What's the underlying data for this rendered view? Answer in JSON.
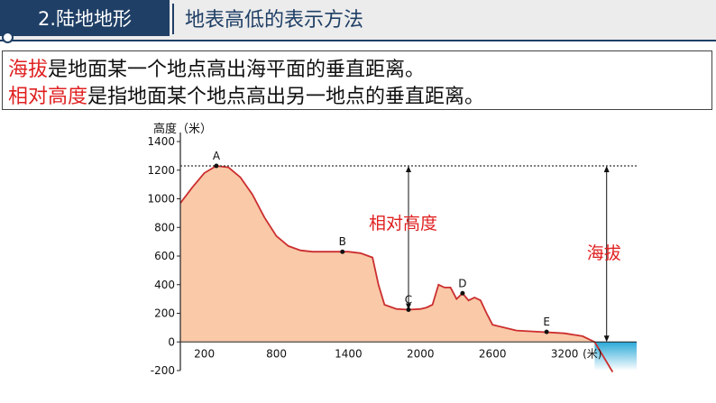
{
  "header": {
    "section_label": "2.陆地地形",
    "title": "地表高低的表示方法"
  },
  "definitions": [
    {
      "term": "海拔",
      "text": "是地面某一个地点高出海平面的垂直距离。"
    },
    {
      "term": "相对高度",
      "text": "是指地面某个地点高出另一地点的垂直距离。"
    }
  ],
  "colors": {
    "accent": "#1f3f66",
    "term_red": "#e02020",
    "land_fill": "#f9c9a8",
    "land_outline": "#cc2e2e",
    "sea": "#29a9d8"
  },
  "chart_data": {
    "type": "area",
    "ylabel": "高度（米）",
    "y_ticks": [
      1400,
      1200,
      1000,
      800,
      600,
      400,
      200,
      0,
      -200
    ],
    "x_ticks": [
      "200",
      "800",
      "1400",
      "2000",
      "2600",
      "3200"
    ],
    "x_unit": "(米)",
    "ylim": [
      -200,
      1400
    ],
    "xlim": [
      0,
      3800
    ],
    "profile": [
      [
        0,
        970
      ],
      [
        100,
        1080
      ],
      [
        200,
        1180
      ],
      [
        300,
        1230
      ],
      [
        400,
        1220
      ],
      [
        500,
        1150
      ],
      [
        600,
        1030
      ],
      [
        700,
        870
      ],
      [
        800,
        740
      ],
      [
        900,
        670
      ],
      [
        1000,
        640
      ],
      [
        1100,
        630
      ],
      [
        1200,
        630
      ],
      [
        1300,
        630
      ],
      [
        1400,
        630
      ],
      [
        1500,
        620
      ],
      [
        1600,
        590
      ],
      [
        1650,
        400
      ],
      [
        1700,
        260
      ],
      [
        1800,
        230
      ],
      [
        1900,
        225
      ],
      [
        2000,
        230
      ],
      [
        2050,
        240
      ],
      [
        2100,
        260
      ],
      [
        2150,
        400
      ],
      [
        2200,
        380
      ],
      [
        2250,
        380
      ],
      [
        2300,
        300
      ],
      [
        2350,
        340
      ],
      [
        2400,
        290
      ],
      [
        2450,
        310
      ],
      [
        2500,
        290
      ],
      [
        2550,
        200
      ],
      [
        2600,
        120
      ],
      [
        2800,
        80
      ],
      [
        3000,
        70
      ],
      [
        3200,
        60
      ],
      [
        3350,
        40
      ],
      [
        3450,
        0
      ],
      [
        3600,
        -210
      ]
    ],
    "sea_start_x": 3450,
    "points": [
      {
        "label": "A",
        "x": 300,
        "y": 1230
      },
      {
        "label": "B",
        "x": 1350,
        "y": 630
      },
      {
        "label": "C",
        "x": 1900,
        "y": 225
      },
      {
        "label": "D",
        "x": 2350,
        "y": 340
      },
      {
        "label": "E",
        "x": 3050,
        "y": 70
      }
    ],
    "reference_level": 1230,
    "annotations": {
      "relative_height": "相对高度",
      "altitude": "海拔"
    }
  }
}
